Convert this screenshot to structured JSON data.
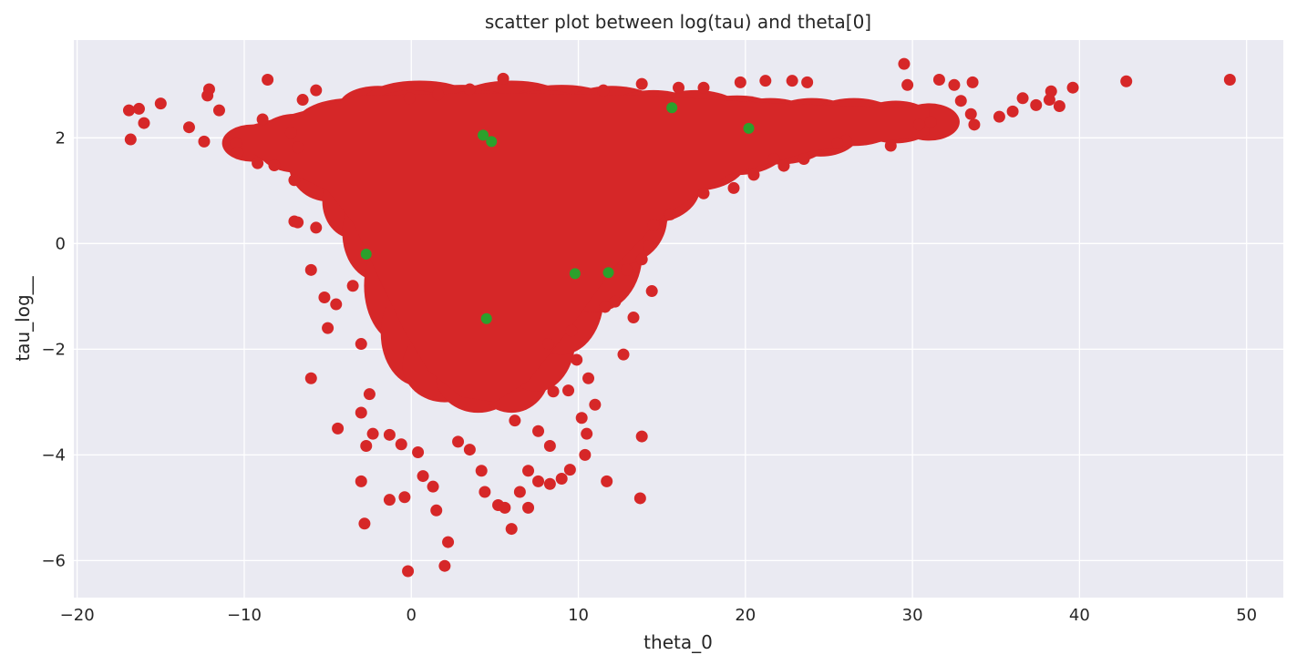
{
  "chart_data": {
    "type": "scatter",
    "title": "scatter plot between log(tau) and theta[0]",
    "xlabel": "theta_0",
    "ylabel": "tau_log__",
    "xlim": [
      -20.2,
      52.2
    ],
    "ylim": [
      -6.7,
      3.85
    ],
    "xticks": [
      -20,
      -10,
      0,
      10,
      20,
      30,
      40,
      50
    ],
    "xtick_labels": [
      "−20",
      "−10",
      "0",
      "10",
      "20",
      "30",
      "40",
      "50"
    ],
    "yticks": [
      -6,
      -4,
      -2,
      0,
      2
    ],
    "ytick_labels": [
      "−6",
      "−4",
      "−2",
      "0",
      "2"
    ],
    "grid": true,
    "background": "#eaeaf2",
    "series": [
      {
        "color": "#d62728",
        "points": [
          [
            -16.9,
            2.52
          ],
          [
            -16.3,
            2.55
          ],
          [
            -16.8,
            1.97
          ],
          [
            -15.0,
            2.65
          ],
          [
            -16.0,
            2.28
          ],
          [
            -13.3,
            2.2
          ],
          [
            -12.1,
            2.92
          ],
          [
            -12.2,
            2.8
          ],
          [
            -11.5,
            2.52
          ],
          [
            -12.4,
            1.93
          ],
          [
            -10.5,
            1.9
          ],
          [
            -10.4,
            1.72
          ],
          [
            -8.6,
            3.1
          ],
          [
            -8.9,
            2.35
          ],
          [
            -9.2,
            1.52
          ],
          [
            -8.2,
            1.48
          ],
          [
            -7.2,
            2.1
          ],
          [
            -6.8,
            1.82
          ],
          [
            -6.5,
            2.72
          ],
          [
            -5.7,
            2.9
          ],
          [
            -7.0,
            1.2
          ],
          [
            -7.0,
            0.42
          ],
          [
            -6.8,
            0.4
          ],
          [
            -6.0,
            -0.5
          ],
          [
            -5.2,
            -1.02
          ],
          [
            -5.7,
            0.3
          ],
          [
            -5.0,
            -1.6
          ],
          [
            -6.0,
            -2.55
          ],
          [
            -4.4,
            -3.5
          ],
          [
            -4.5,
            -1.15
          ],
          [
            -3.5,
            -0.8
          ],
          [
            -3.0,
            -1.9
          ],
          [
            -3.0,
            -3.2
          ],
          [
            -3.0,
            -4.5
          ],
          [
            -2.8,
            -5.3
          ],
          [
            -2.7,
            -3.83
          ],
          [
            -2.5,
            -2.85
          ],
          [
            -2.3,
            -3.6
          ],
          [
            -1.3,
            -3.62
          ],
          [
            -1.3,
            -4.85
          ],
          [
            -0.6,
            -3.8
          ],
          [
            -0.4,
            -4.8
          ],
          [
            -0.2,
            -6.2
          ],
          [
            0.4,
            -3.95
          ],
          [
            0.7,
            -4.4
          ],
          [
            1.3,
            -4.6
          ],
          [
            1.5,
            -5.05
          ],
          [
            2.0,
            -6.1
          ],
          [
            2.2,
            -5.65
          ],
          [
            2.8,
            -3.75
          ],
          [
            3.5,
            -3.9
          ],
          [
            4.2,
            -4.3
          ],
          [
            4.4,
            -4.7
          ],
          [
            5.2,
            -4.95
          ],
          [
            5.6,
            -5.0
          ],
          [
            6.0,
            -5.4
          ],
          [
            6.5,
            -4.7
          ],
          [
            7.0,
            -4.3
          ],
          [
            7.0,
            -5.0
          ],
          [
            7.6,
            -4.5
          ],
          [
            8.3,
            -4.55
          ],
          [
            9.0,
            -4.45
          ],
          [
            9.5,
            -4.28
          ],
          [
            10.4,
            -4.0
          ],
          [
            10.5,
            -3.6
          ],
          [
            10.2,
            -3.3
          ],
          [
            11.0,
            -3.05
          ],
          [
            11.7,
            -4.5
          ],
          [
            13.7,
            -4.82
          ],
          [
            13.8,
            -3.65
          ],
          [
            13.3,
            -1.4
          ],
          [
            12.7,
            -2.1
          ],
          [
            14.4,
            -0.9
          ],
          [
            10.6,
            -2.55
          ],
          [
            9.9,
            -2.2
          ],
          [
            8.3,
            -3.83
          ],
          [
            7.6,
            -3.55
          ],
          [
            9.4,
            -2.78
          ],
          [
            8.5,
            -2.8
          ],
          [
            6.2,
            -3.35
          ],
          [
            29.5,
            3.4
          ],
          [
            29.7,
            3.0
          ],
          [
            31.6,
            3.1
          ],
          [
            32.5,
            3.0
          ],
          [
            33.6,
            3.05
          ],
          [
            32.9,
            2.7
          ],
          [
            33.5,
            2.45
          ],
          [
            33.7,
            2.25
          ],
          [
            35.2,
            2.4
          ],
          [
            36.0,
            2.5
          ],
          [
            36.6,
            2.75
          ],
          [
            37.4,
            2.62
          ],
          [
            38.2,
            2.72
          ],
          [
            38.3,
            2.88
          ],
          [
            38.8,
            2.6
          ],
          [
            39.6,
            2.95
          ],
          [
            42.8,
            3.07
          ],
          [
            49.0,
            3.1
          ],
          [
            28.7,
            1.85
          ],
          [
            30.4,
            2.25
          ],
          [
            31.1,
            2.3
          ],
          [
            26.0,
            1.95
          ],
          [
            25.5,
            1.9
          ],
          [
            23.5,
            1.6
          ],
          [
            21.7,
            1.6
          ],
          [
            22.3,
            1.47
          ],
          [
            20.5,
            1.3
          ],
          [
            19.3,
            1.05
          ],
          [
            17.5,
            0.95
          ],
          [
            15.5,
            0.55
          ],
          [
            14.5,
            0.35
          ],
          [
            14.2,
            -0.05
          ],
          [
            13.8,
            -0.3
          ],
          [
            12.9,
            -0.5
          ],
          [
            12.2,
            -1.1
          ],
          [
            11.6,
            -1.2
          ],
          [
            9.6,
            -1.65
          ],
          [
            8.2,
            -1.9
          ],
          [
            5.5,
            3.12
          ],
          [
            3.5,
            2.92
          ],
          [
            19.7,
            3.05
          ],
          [
            21.2,
            3.08
          ],
          [
            22.8,
            3.08
          ],
          [
            23.7,
            3.05
          ],
          [
            17.5,
            2.95
          ],
          [
            16.0,
            2.95
          ],
          [
            13.8,
            3.02
          ],
          [
            11.5,
            2.9
          ],
          [
            -0.1,
            2.75
          ],
          [
            1.6,
            2.82
          ]
        ]
      },
      {
        "color": "#2ca02c",
        "points": [
          [
            4.3,
            2.05
          ],
          [
            4.8,
            1.93
          ],
          [
            15.6,
            2.57
          ],
          [
            20.2,
            2.18
          ],
          [
            -2.7,
            -0.2
          ],
          [
            9.8,
            -0.57
          ],
          [
            11.8,
            -0.55
          ],
          [
            4.5,
            -1.42
          ]
        ]
      }
    ]
  }
}
